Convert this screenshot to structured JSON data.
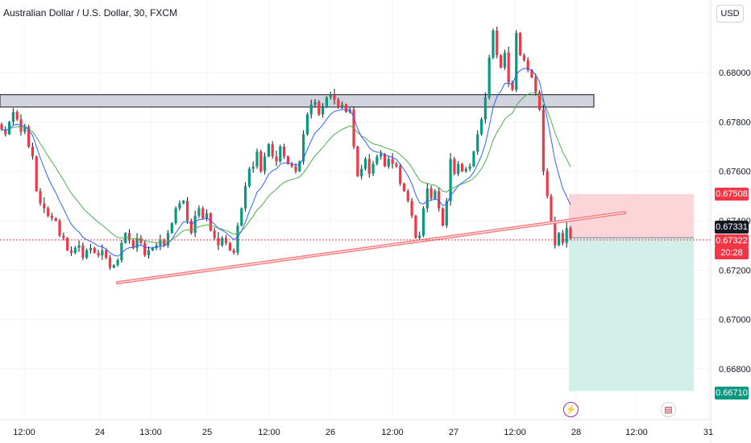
{
  "header": {
    "title": "Australian Dollar / U.S. Dollar, 30, FXCM",
    "currency": "USD"
  },
  "price_tags": {
    "stop": "0.67508",
    "last": "0.67331",
    "bid": "0.67322",
    "countdown": "20:28",
    "target": "0.66710"
  },
  "colors": {
    "up": "#089981",
    "down": "#f23645",
    "wick": "#131722",
    "ema_fast": "#2962ff",
    "ema_slow": "#4caf50",
    "trendline": "#f77c80",
    "zone": "#d1d4dc",
    "stop_fill": "#fcd5d8",
    "target_fill": "#d3efe9"
  },
  "icons": {
    "event_1": "lightning-icon",
    "event_2": "us-flag-icon"
  },
  "chart_data": {
    "type": "candlestick",
    "symbol": "AUDUSD",
    "y_ticks": [
      "0.68000",
      "0.67800",
      "0.67600",
      "0.67400",
      "0.67200",
      "0.67000",
      "0.66800"
    ],
    "x_ticks": [
      "12:00",
      "24",
      "13:00",
      "25",
      "12:00",
      "26",
      "12:00",
      "27",
      "12:00",
      "28",
      "12:00",
      "31"
    ],
    "ylim": [
      0.6662,
      0.6832
    ],
    "resistance_zone": [
      0.6786,
      0.6791
    ],
    "short_position": {
      "entry": 0.67331,
      "stop": 0.67508,
      "target": 0.6671
    },
    "price_path": [
      0.6777,
      0.6775,
      0.678,
      0.6784,
      0.6781,
      0.6776,
      0.6778,
      0.677,
      0.6766,
      0.6752,
      0.6747,
      0.6745,
      0.6742,
      0.6741,
      0.674,
      0.6734,
      0.6733,
      0.6728,
      0.6727,
      0.6729,
      0.673,
      0.6725,
      0.6728,
      0.6729,
      0.6727,
      0.6726,
      0.6728,
      0.6725,
      0.6721,
      0.6722,
      0.6724,
      0.6731,
      0.6735,
      0.6732,
      0.6729,
      0.6733,
      0.6731,
      0.6726,
      0.6728,
      0.6729,
      0.673,
      0.6732,
      0.673,
      0.6735,
      0.6739,
      0.6745,
      0.6747,
      0.6748,
      0.674,
      0.6735,
      0.6742,
      0.6745,
      0.6741,
      0.6743,
      0.6736,
      0.6733,
      0.673,
      0.6733,
      0.6731,
      0.6728,
      0.6727,
      0.6738,
      0.6745,
      0.6754,
      0.6761,
      0.6762,
      0.6768,
      0.676,
      0.6766,
      0.6771,
      0.6766,
      0.6764,
      0.677,
      0.6766,
      0.6763,
      0.6762,
      0.676,
      0.6764,
      0.6775,
      0.6783,
      0.6787,
      0.6788,
      0.6783,
      0.6786,
      0.679,
      0.6791,
      0.6789,
      0.6786,
      0.6787,
      0.6784,
      0.6785,
      0.677,
      0.6758,
      0.6761,
      0.6765,
      0.6759,
      0.6763,
      0.6766,
      0.6767,
      0.6762,
      0.6765,
      0.6763,
      0.6762,
      0.6755,
      0.6752,
      0.6748,
      0.6742,
      0.6733,
      0.6734,
      0.6745,
      0.6753,
      0.6749,
      0.6752,
      0.6745,
      0.6738,
      0.6748,
      0.6765,
      0.6759,
      0.6763,
      0.676,
      0.6761,
      0.6762,
      0.6768,
      0.6775,
      0.6781,
      0.679,
      0.6806,
      0.6817,
      0.6807,
      0.6802,
      0.6808,
      0.6796,
      0.6793,
      0.6816,
      0.6807,
      0.6805,
      0.6801,
      0.6798,
      0.6792,
      0.6785,
      0.676,
      0.675,
      0.674,
      0.673,
      0.6735,
      0.6731,
      0.6737,
      0.6733
    ]
  }
}
